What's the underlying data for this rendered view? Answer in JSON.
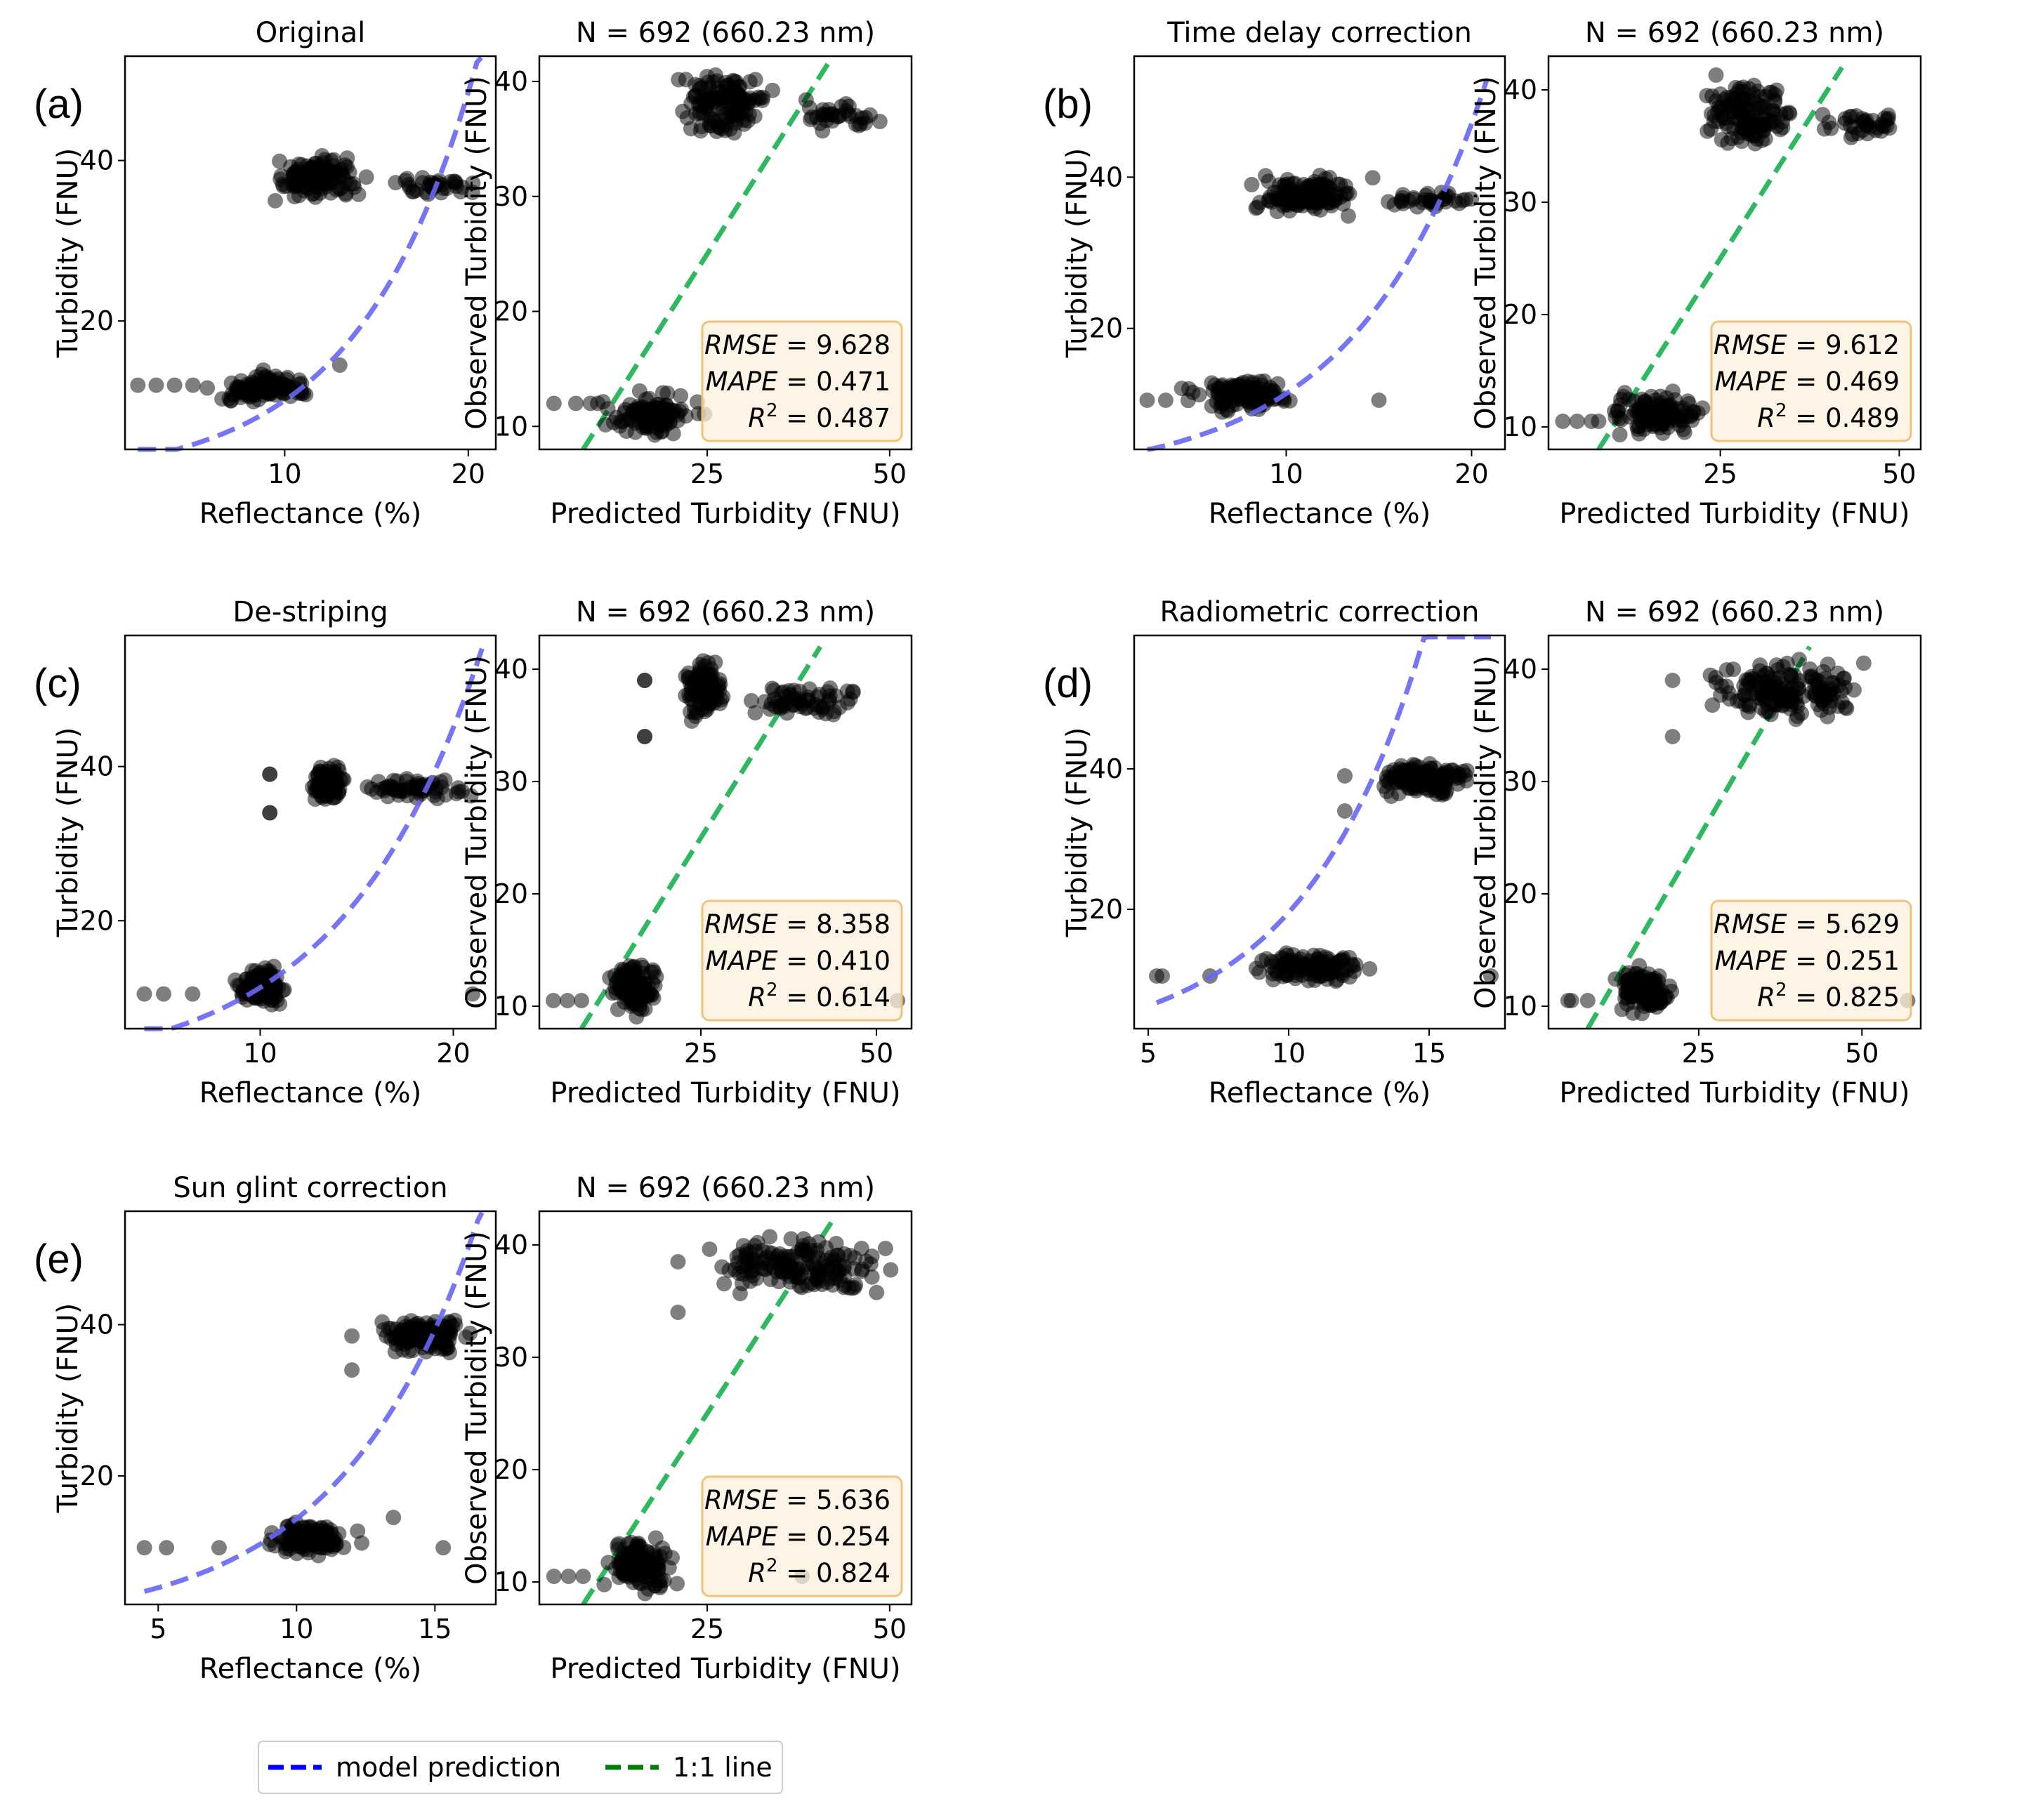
{
  "colors": {
    "model": "#6666f5",
    "one_to_one": "#2eb860",
    "point": "#000000",
    "statbox_fill": "#fdf0dc",
    "statbox_stroke": "#f0c27a",
    "legend_model": "#0000ff",
    "legend_one_to_one": "#008000"
  },
  "legend": {
    "model": "model prediction",
    "one_to_one": "1:1 line"
  },
  "stat_labels": {
    "rmse": "RMSE",
    "mape": "MAPE",
    "r2": "R",
    "r2_sup": "2"
  },
  "chart_data": [
    {
      "id": "a",
      "panel_label": "(a)",
      "reflectance": {
        "type": "scatter",
        "title": "Original",
        "xlabel": "Reflectance (%)",
        "ylabel": "Turbidity (FNU)",
        "xlim": [
          1.3,
          21.5
        ],
        "ylim": [
          4.0,
          53.0
        ],
        "xticks": [
          10,
          20
        ],
        "yticks": [
          20,
          40
        ],
        "model_curve": {
          "a": 2.1,
          "b": 0.157,
          "x_range": [
            2.0,
            20.7
          ]
        },
        "clusters": [
          {
            "x": [
              2,
              3,
              4,
              5,
              13
            ],
            "y": [
              12,
              12,
              12,
              12,
              14.5
            ]
          },
          {
            "x_range": [
              5.5,
              12
            ],
            "y_range": [
              9,
              14
            ],
            "n": 110,
            "seed": 11
          },
          {
            "x_range": [
              8.5,
              15
            ],
            "y_range": [
              34.5,
              41.5
            ],
            "n": 130,
            "seed": 12
          },
          {
            "x_range": [
              15,
              20.7
            ],
            "y_range": [
              35.5,
              38.5
            ],
            "n": 35,
            "seed": 13
          }
        ]
      },
      "observed": {
        "type": "scatter",
        "title": "N = 692 (660.23 nm)",
        "xlabel": "Predicted Turbidity (FNU)",
        "ylabel": "Observed Turbidity (FNU)",
        "xlim": [
          2.0,
          53.0
        ],
        "ylim": [
          8.0,
          42.2
        ],
        "xticks": [
          25,
          50
        ],
        "yticks": [
          10,
          20,
          30,
          40
        ],
        "one_to_one": [
          8,
          42
        ],
        "rmse": "9.628",
        "mape": "0.471",
        "r2": "0.487",
        "clusters": [
          {
            "x": [
              4,
              7,
              9,
              10
            ],
            "y": [
              12,
              12,
              12,
              12
            ]
          },
          {
            "x_range": [
              10,
              25
            ],
            "y_range": [
              8.5,
              13.5
            ],
            "n": 110,
            "seed": 21
          },
          {
            "x_range": [
              20,
              35
            ],
            "y_range": [
              34.5,
              41.5
            ],
            "n": 130,
            "seed": 22
          },
          {
            "x_range": [
              35,
              52
            ],
            "y_range": [
              35.5,
              38.5
            ],
            "n": 35,
            "seed": 23
          }
        ]
      }
    },
    {
      "id": "b",
      "panel_label": "(b)",
      "reflectance": {
        "type": "scatter",
        "title": "Time delay correction",
        "xlabel": "Reflectance (%)",
        "ylabel": "Turbidity (FNU)",
        "xlim": [
          1.8,
          21.8
        ],
        "ylim": [
          4.0,
          56.0
        ],
        "xticks": [
          10,
          20
        ],
        "yticks": [
          20,
          40
        ],
        "model_curve": {
          "a": 2.75,
          "b": 0.142,
          "x_range": [
            2.5,
            20.8
          ]
        },
        "clusters": [
          {
            "x": [
              2.5,
              3.5,
              15
            ],
            "y": [
              10.5,
              10.5,
              10.5
            ]
          },
          {
            "x_range": [
              4,
              11.5
            ],
            "y_range": [
              8.5,
              14
            ],
            "n": 110,
            "seed": 31
          },
          {
            "x_range": [
              7,
              15
            ],
            "y_range": [
              34.5,
              41
            ],
            "n": 130,
            "seed": 32
          },
          {
            "x_range": [
              15,
              21
            ],
            "y_range": [
              35.5,
              38.5
            ],
            "n": 35,
            "seed": 33
          }
        ]
      },
      "observed": {
        "type": "scatter",
        "title": "N = 692 (660.23 nm)",
        "xlabel": "Predicted Turbidity (FNU)",
        "ylabel": "Observed Turbidity (FNU)",
        "xlim": [
          1.0,
          53.0
        ],
        "ylim": [
          8.0,
          43.0
        ],
        "xticks": [
          25,
          50
        ],
        "yticks": [
          10,
          20,
          30,
          40
        ],
        "one_to_one": [
          8,
          42
        ],
        "rmse": "9.612",
        "mape": "0.469",
        "r2": "0.489",
        "clusters": [
          {
            "x": [
              3,
              5,
              7,
              8
            ],
            "y": [
              10.5,
              10.5,
              10.5,
              10.5
            ]
          },
          {
            "x_range": [
              8,
              24
            ],
            "y_range": [
              8.5,
              14
            ],
            "n": 110,
            "seed": 41
          },
          {
            "x_range": [
              20,
              37
            ],
            "y_range": [
              34,
              41.5
            ],
            "n": 130,
            "seed": 42
          },
          {
            "x_range": [
              37,
              52
            ],
            "y_range": [
              35.5,
              38.5
            ],
            "n": 35,
            "seed": 43
          }
        ]
      }
    },
    {
      "id": "c",
      "panel_label": "(c)",
      "reflectance": {
        "type": "scatter",
        "title": "De-striping",
        "xlabel": "Reflectance (%)",
        "ylabel": "Turbidity (FNU)",
        "xlim": [
          3.0,
          22.2
        ],
        "ylim": [
          6.0,
          57.0
        ],
        "xticks": [
          10,
          20
        ],
        "yticks": [
          20,
          40
        ],
        "model_curve": {
          "a": 2.85,
          "b": 0.138,
          "x_range": [
            4.0,
            21.5
          ]
        },
        "clusters": [
          {
            "x": [
              4,
              5,
              6.5,
              10.5,
              10.5,
              10.5,
              10.5,
              21
            ],
            "y": [
              10.5,
              10.5,
              10.5,
              34,
              34,
              39,
              39,
              10.5
            ]
          },
          {
            "x_range": [
              8.5,
              11.5
            ],
            "y_range": [
              8.5,
              14.5
            ],
            "n": 120,
            "seed": 51
          },
          {
            "x_range": [
              12.5,
              14.5
            ],
            "y_range": [
              35,
              41
            ],
            "n": 100,
            "seed": 52
          },
          {
            "x_range": [
              14.5,
              21.5
            ],
            "y_range": [
              35.5,
              39
            ],
            "n": 60,
            "seed": 53
          }
        ]
      },
      "observed": {
        "type": "scatter",
        "title": "N = 692 (660.23 nm)",
        "xlabel": "Predicted Turbidity (FNU)",
        "ylabel": "Observed Turbidity (FNU)",
        "xlim": [
          2.0,
          55.0
        ],
        "ylim": [
          8.0,
          43.0
        ],
        "xticks": [
          25,
          50
        ],
        "yticks": [
          10,
          20,
          30,
          40
        ],
        "one_to_one": [
          8,
          42
        ],
        "rmse": "8.358",
        "mape": "0.410",
        "r2": "0.614",
        "clusters": [
          {
            "x": [
              4,
              6,
              8,
              17,
              17,
              17,
              17,
              53
            ],
            "y": [
              10.5,
              10.5,
              10.5,
              34,
              34,
              39,
              39,
              10.5
            ]
          },
          {
            "x_range": [
              11,
              20
            ],
            "y_range": [
              8.5,
              14.5
            ],
            "n": 120,
            "seed": 61
          },
          {
            "x_range": [
              22,
              29
            ],
            "y_range": [
              35,
              41.5
            ],
            "n": 100,
            "seed": 62
          },
          {
            "x_range": [
              29,
              53
            ],
            "y_range": [
              35.5,
              39
            ],
            "n": 60,
            "seed": 63
          }
        ]
      }
    },
    {
      "id": "d",
      "panel_label": "(d)",
      "reflectance": {
        "type": "scatter",
        "title": "Radiometric correction",
        "xlabel": "Reflectance (%)",
        "ylabel": "Turbidity (FNU)",
        "xlim": [
          4.5,
          17.7
        ],
        "ylim": [
          3.0,
          59.0
        ],
        "xticks": [
          5,
          10,
          15
        ],
        "yticks": [
          20,
          40
        ],
        "model_curve": {
          "a": 2.0,
          "b": 0.228,
          "x_range": [
            5.3,
            17.2
          ]
        },
        "clusters": [
          {
            "x": [
              5.3,
              5.5,
              7.2,
              12,
              12,
              17.2
            ],
            "y": [
              10.5,
              10.5,
              10.5,
              34,
              39,
              10.5
            ]
          },
          {
            "x_range": [
              8.5,
              13
            ],
            "y_range": [
              9,
              14.5
            ],
            "n": 120,
            "seed": 71
          },
          {
            "x_range": [
              12.8,
              17
            ],
            "y_range": [
              35.5,
              41.5
            ],
            "n": 160,
            "seed": 72
          }
        ]
      },
      "observed": {
        "type": "scatter",
        "title": "N = 692 (660.23 nm)",
        "xlabel": "Predicted Turbidity (FNU)",
        "ylabel": "Observed Turbidity (FNU)",
        "xlim": [
          2.0,
          59.0
        ],
        "ylim": [
          8.0,
          43.0
        ],
        "xticks": [
          25,
          50
        ],
        "yticks": [
          10,
          20,
          30,
          40
        ],
        "one_to_one": [
          8,
          42
        ],
        "rmse": "5.629",
        "mape": "0.251",
        "r2": "0.825",
        "clusters": [
          {
            "x": [
              5,
              5.5,
              8,
              21,
              21,
              57
            ],
            "y": [
              10.5,
              10.5,
              10.5,
              34,
              39,
              10.5
            ]
          },
          {
            "x_range": [
              11,
              22
            ],
            "y_range": [
              8.5,
              14.5
            ],
            "n": 120,
            "seed": 81
          },
          {
            "x_range": [
              22,
              54
            ],
            "y_range": [
              35,
              41.5
            ],
            "n": 160,
            "seed": 82
          }
        ]
      }
    },
    {
      "id": "e",
      "panel_label": "(e)",
      "reflectance": {
        "type": "scatter",
        "title": "Sun glint correction",
        "xlabel": "Reflectance (%)",
        "ylabel": "Turbidity (FNU)",
        "xlim": [
          3.8,
          17.2
        ],
        "ylim": [
          3.0,
          55.0
        ],
        "xticks": [
          5,
          10,
          15
        ],
        "yticks": [
          20,
          40
        ],
        "model_curve": {
          "a": 1.9,
          "b": 0.202,
          "x_range": [
            4.5,
            16.7
          ]
        },
        "clusters": [
          {
            "x": [
              4.5,
              5.3,
              7.2,
              12,
              12,
              13.5,
              15.3
            ],
            "y": [
              10.5,
              10.5,
              10.5,
              34,
              38.5,
              14.5,
              10.5
            ]
          },
          {
            "x_range": [
              8.5,
              12.5
            ],
            "y_range": [
              9,
              14.5
            ],
            "n": 120,
            "seed": 91
          },
          {
            "x_range": [
              12.5,
              16.7
            ],
            "y_range": [
              35.5,
              41.5
            ],
            "n": 160,
            "seed": 92
          }
        ]
      },
      "observed": {
        "type": "scatter",
        "title": "N = 692 (660.23 nm)",
        "xlabel": "Predicted Turbidity (FNU)",
        "ylabel": "Observed Turbidity (FNU)",
        "xlim": [
          2.0,
          53.0
        ],
        "ylim": [
          8.0,
          43.0
        ],
        "xticks": [
          25,
          50
        ],
        "yticks": [
          10,
          20,
          30,
          40
        ],
        "one_to_one": [
          8,
          42
        ],
        "rmse": "5.636",
        "mape": "0.254",
        "r2": "0.824",
        "clusters": [
          {
            "x": [
              4,
              6,
              8,
              21,
              21,
              38
            ],
            "y": [
              10.5,
              10.5,
              10.5,
              34,
              38.5,
              10.5
            ]
          },
          {
            "x_range": [
              10,
              22
            ],
            "y_range": [
              8.5,
              14.5
            ],
            "n": 120,
            "seed": 101
          },
          {
            "x_range": [
              22,
              52
            ],
            "y_range": [
              35,
              41.5
            ],
            "n": 160,
            "seed": 102
          }
        ]
      }
    }
  ]
}
